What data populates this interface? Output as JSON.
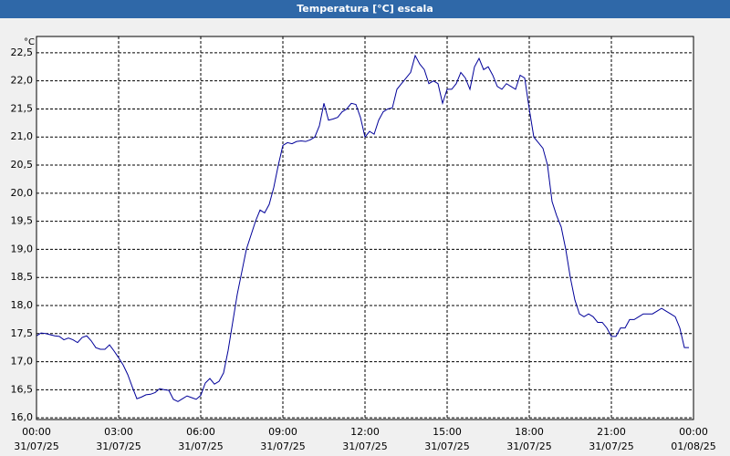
{
  "chart_data": {
    "type": "line",
    "title": "Temperatura [°C] escala",
    "y_unit": "°C",
    "x": [
      0,
      10,
      20,
      30,
      40,
      50,
      60,
      70,
      80,
      90,
      100,
      110,
      120,
      130,
      140,
      150,
      160,
      170,
      180,
      190,
      200,
      210,
      220,
      230,
      240,
      250,
      260,
      270,
      280,
      290,
      300,
      310,
      320,
      330,
      340,
      350,
      360,
      370,
      380,
      390,
      400,
      410,
      420,
      430,
      440,
      450,
      460,
      470,
      480,
      490,
      500,
      510,
      520,
      530,
      540,
      550,
      560,
      570,
      580,
      590,
      600,
      610,
      620,
      630,
      640,
      650,
      660,
      670,
      680,
      690,
      700,
      710,
      720,
      730,
      740,
      750,
      760,
      770,
      780,
      790,
      800,
      810,
      820,
      830,
      840,
      850,
      860,
      870,
      880,
      890,
      900,
      910,
      920,
      930,
      940,
      950,
      960,
      970,
      980,
      990,
      1000,
      1010,
      1020,
      1030,
      1040,
      1050,
      1060,
      1070,
      1080,
      1090,
      1100,
      1110,
      1120,
      1130,
      1140,
      1150,
      1160,
      1170,
      1180,
      1190,
      1200,
      1210,
      1220,
      1230,
      1240,
      1250,
      1260,
      1270,
      1280,
      1290,
      1300,
      1310,
      1320,
      1330,
      1340,
      1350,
      1360,
      1370,
      1380,
      1390,
      1400,
      1410,
      1420,
      1430
    ],
    "values": [
      17.46,
      17.51,
      17.5,
      17.48,
      17.46,
      17.45,
      17.39,
      17.42,
      17.39,
      17.34,
      17.43,
      17.46,
      17.37,
      17.25,
      17.22,
      17.22,
      17.3,
      17.19,
      17.07,
      16.94,
      16.77,
      16.55,
      16.34,
      16.37,
      16.41,
      16.42,
      16.45,
      16.52,
      16.5,
      16.49,
      16.33,
      16.29,
      16.34,
      16.39,
      16.36,
      16.33,
      16.4,
      16.62,
      16.7,
      16.6,
      16.65,
      16.8,
      17.2,
      17.7,
      18.2,
      18.6,
      19.0,
      19.25,
      19.5,
      19.7,
      19.65,
      19.8,
      20.1,
      20.5,
      20.85,
      20.9,
      20.88,
      20.92,
      20.93,
      20.92,
      20.95,
      21.0,
      21.2,
      21.6,
      21.3,
      21.32,
      21.35,
      21.45,
      21.5,
      21.6,
      21.58,
      21.35,
      21.0,
      21.1,
      21.05,
      21.3,
      21.45,
      21.5,
      21.52,
      21.85,
      21.95,
      22.05,
      22.15,
      22.45,
      22.3,
      22.2,
      21.95,
      22.0,
      21.95,
      21.6,
      21.85,
      21.85,
      21.95,
      22.15,
      22.05,
      21.85,
      22.25,
      22.4,
      22.2,
      22.25,
      22.1,
      21.9,
      21.85,
      21.95,
      21.9,
      21.85,
      22.1,
      22.05,
      21.5,
      21.0,
      20.9,
      20.8,
      20.5,
      19.85,
      19.6,
      19.4,
      19.0,
      18.5,
      18.1,
      17.85,
      17.8,
      17.85,
      17.8,
      17.7,
      17.7,
      17.6,
      17.45,
      17.45,
      17.6,
      17.6,
      17.75,
      17.75,
      17.8,
      17.85,
      17.85,
      17.85,
      17.9,
      17.95,
      17.9,
      17.85,
      17.8,
      17.6,
      17.25,
      17.25
    ],
    "color": "#000099",
    "xlim": [
      0,
      1440
    ],
    "xticks": [
      {
        "value": 0,
        "label": "00:00"
      },
      {
        "value": 180,
        "label": "03:00"
      },
      {
        "value": 360,
        "label": "06:00"
      },
      {
        "value": 540,
        "label": "09:00"
      },
      {
        "value": 720,
        "label": "12:00"
      },
      {
        "value": 900,
        "label": "15:00"
      },
      {
        "value": 1080,
        "label": "18:00"
      },
      {
        "value": 1260,
        "label": "21:00"
      },
      {
        "value": 1440,
        "label": "00:00"
      }
    ],
    "xtick_dates": [
      "31/07/25",
      "31/07/25",
      "31/07/25",
      "31/07/25",
      "31/07/25",
      "31/07/25",
      "31/07/25",
      "31/07/25",
      "01/08/25"
    ],
    "ylim": [
      15.97,
      22.79
    ],
    "yticks": [
      {
        "value": 16,
        "label": "16,0"
      },
      {
        "value": 16.5,
        "label": "16,5"
      },
      {
        "value": 17,
        "label": "17,0"
      },
      {
        "value": 17.5,
        "label": "17,5"
      },
      {
        "value": 18,
        "label": "18,0"
      },
      {
        "value": 18.5,
        "label": "18,5"
      },
      {
        "value": 19,
        "label": "19,0"
      },
      {
        "value": 19.5,
        "label": "19,5"
      },
      {
        "value": 20,
        "label": "20,0"
      },
      {
        "value": 20.5,
        "label": "20,5"
      },
      {
        "value": 21,
        "label": "21,0"
      },
      {
        "value": 21.5,
        "label": "21,5"
      },
      {
        "value": 22,
        "label": "22,0"
      },
      {
        "value": 22.5,
        "label": "22,5"
      }
    ],
    "grid": true
  }
}
